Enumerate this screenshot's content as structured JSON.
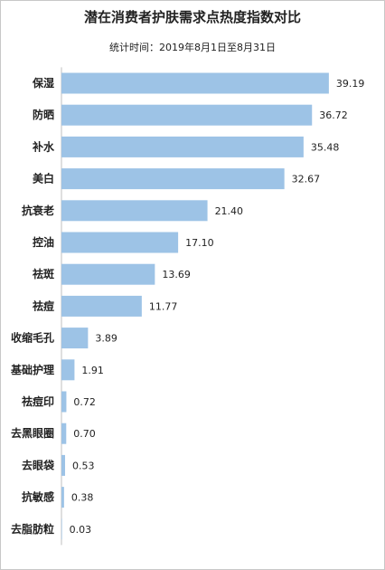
{
  "chart_data": {
    "type": "bar",
    "orientation": "horizontal",
    "title": "潜在消费者护肤需求点热度指数对比",
    "subtitle": "统计时间：2019年8月1日至8月31日",
    "categories": [
      "保湿",
      "防晒",
      "补水",
      "美白",
      "抗衰老",
      "控油",
      "祛斑",
      "祛痘",
      "收缩毛孔",
      "基础护理",
      "祛痘印",
      "去黑眼圈",
      "去眼袋",
      "抗敏感",
      "去脂肪粒"
    ],
    "values": [
      39.19,
      36.72,
      35.48,
      32.67,
      21.4,
      17.1,
      13.69,
      11.77,
      3.89,
      1.91,
      0.72,
      0.7,
      0.53,
      0.38,
      0.03
    ],
    "value_labels": [
      "39.19",
      "36.72",
      "35.48",
      "32.67",
      "21.40",
      "17.10",
      "13.69",
      "11.77",
      "3.89",
      "1.91",
      "0.72",
      "0.70",
      "0.53",
      "0.38",
      "0.03"
    ],
    "xlim": [
      0,
      40
    ],
    "bar_color": "#9dc3e6",
    "axis_color": "#bfbfbf",
    "grid": false,
    "legend": "none"
  }
}
